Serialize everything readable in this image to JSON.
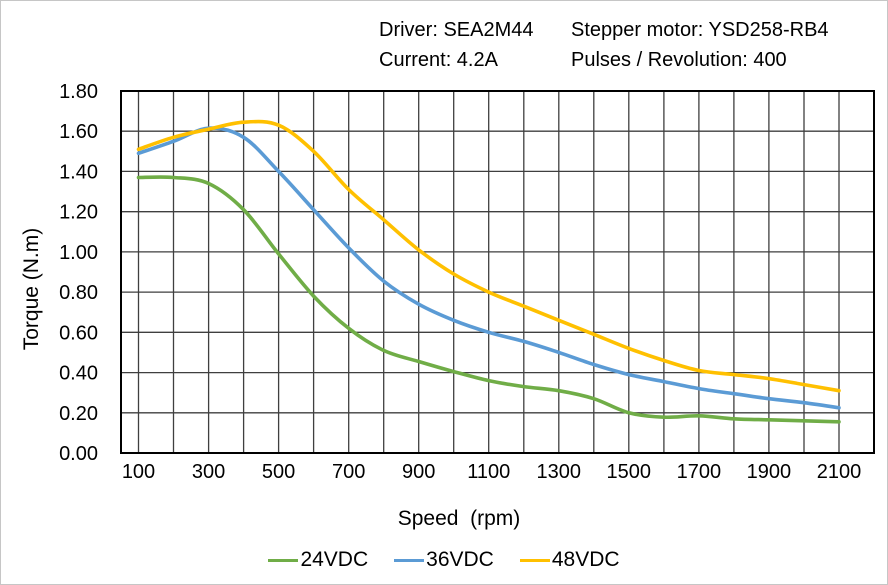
{
  "header": {
    "driver": "Driver: SEA2M44",
    "motor": "Stepper motor: YSD258-RB4",
    "current": "Current: 4.2A",
    "pulses": "Pulses / Revolution: 400"
  },
  "chart_data": {
    "type": "line",
    "title": "",
    "xlabel": "Speed  (rpm)",
    "ylabel": "Torque (N.m)",
    "xlim": [
      50,
      2200
    ],
    "ylim": [
      0,
      1.8
    ],
    "grid": true,
    "smooth": true,
    "legend_position": "bottom",
    "x_ticks": [
      100,
      300,
      500,
      700,
      900,
      1100,
      1300,
      1500,
      1700,
      1900,
      2100
    ],
    "y_ticks": [
      "0.00",
      "0.20",
      "0.40",
      "0.60",
      "0.80",
      "1.00",
      "1.20",
      "1.40",
      "1.60",
      "1.80"
    ],
    "x_grid_range": [
      100,
      2100
    ],
    "x_grid_step": 100,
    "y_grid_step": 0.2,
    "x": [
      100,
      200,
      300,
      400,
      500,
      600,
      700,
      800,
      900,
      1000,
      1100,
      1200,
      1300,
      1400,
      1500,
      1600,
      1700,
      1800,
      1900,
      2000,
      2100
    ],
    "series": [
      {
        "name": "24VDC",
        "color": "#70AD47",
        "values": [
          1.37,
          1.37,
          1.34,
          1.21,
          0.99,
          0.78,
          0.62,
          0.51,
          0.455,
          0.405,
          0.36,
          0.33,
          0.31,
          0.27,
          0.2,
          0.178,
          0.185,
          0.17,
          0.165,
          0.16,
          0.155
        ]
      },
      {
        "name": "36VDC",
        "color": "#5B9BD5",
        "values": [
          1.49,
          1.55,
          1.615,
          1.57,
          1.4,
          1.21,
          1.02,
          0.855,
          0.74,
          0.66,
          0.6,
          0.555,
          0.5,
          0.44,
          0.39,
          0.355,
          0.32,
          0.295,
          0.27,
          0.25,
          0.225
        ]
      },
      {
        "name": "48VDC",
        "color": "#FFC000",
        "values": [
          1.51,
          1.57,
          1.61,
          1.645,
          1.63,
          1.5,
          1.31,
          1.16,
          1.01,
          0.89,
          0.8,
          0.73,
          0.66,
          0.59,
          0.52,
          0.46,
          0.41,
          0.39,
          0.37,
          0.34,
          0.31
        ]
      }
    ],
    "colors": {
      "gridline": "#3f3f3f",
      "border": "#000000",
      "text": "#000000"
    }
  }
}
